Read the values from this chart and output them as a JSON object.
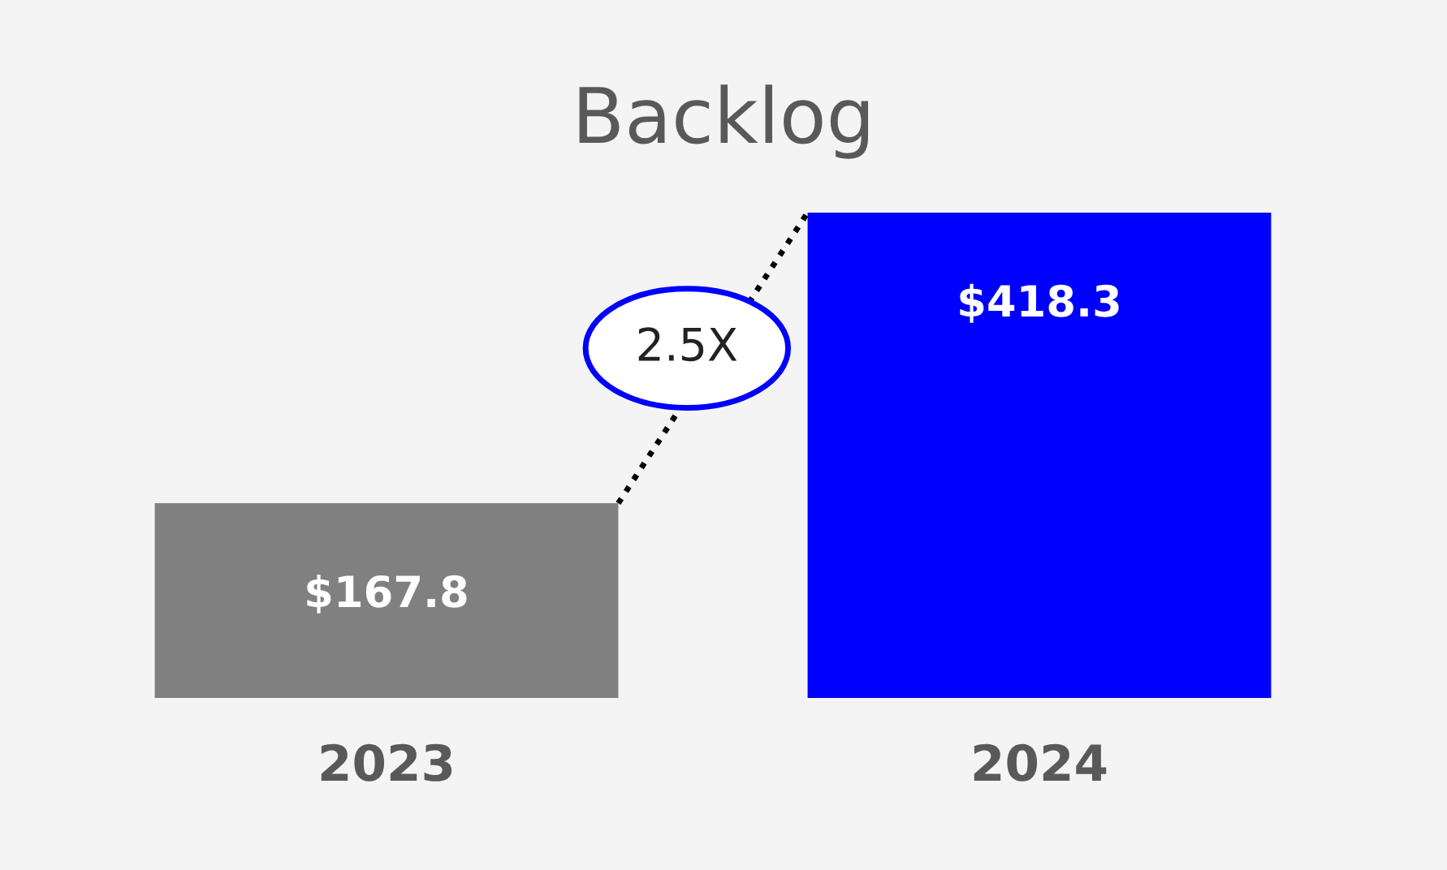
{
  "chart_data": {
    "type": "bar",
    "title": "Backlog",
    "categories": [
      "2023",
      "2024"
    ],
    "values": [
      167.8,
      418.3
    ],
    "colors": [
      "#808080",
      "#0000ff"
    ],
    "value_labels": [
      "$167.8",
      "$418.3"
    ],
    "annotations": [
      "2.5X"
    ],
    "grid": false,
    "legend": false
  }
}
